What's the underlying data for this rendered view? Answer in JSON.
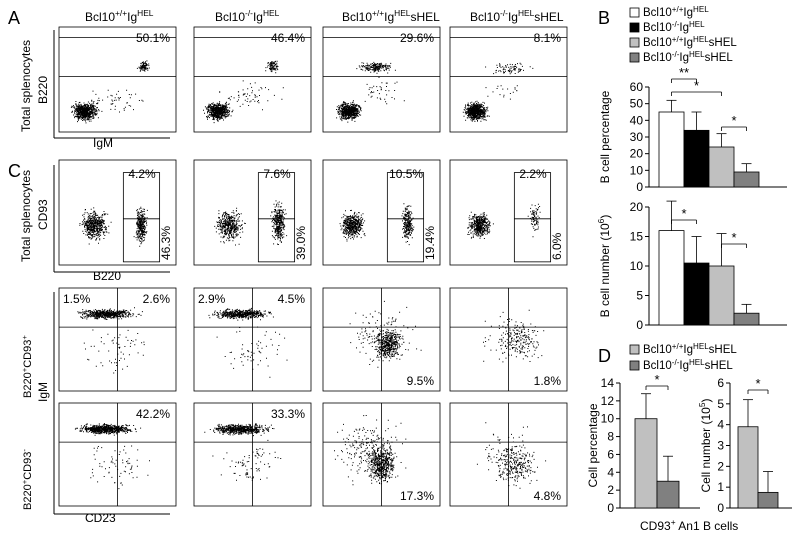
{
  "panel_letters": [
    "A",
    "B",
    "C",
    "D"
  ],
  "genotypes": [
    "Bcl10",
    "Bcl10",
    "Bcl10",
    "Bcl10"
  ],
  "genotype_sup": [
    "+/+",
    "-/-",
    "+/+",
    "-/-"
  ],
  "genotype_mid": [
    "Ig",
    "Ig",
    "Ig",
    "Ig"
  ],
  "genotype_sup2": [
    "HEL",
    "HEL",
    "HEL",
    "HEL"
  ],
  "genotype_tail": [
    "",
    "",
    "sHEL",
    "sHEL"
  ],
  "panelA": {
    "row_label": "Total splenocytes",
    "y_axis": "B220",
    "x_axis": "IgM",
    "gate_percent": [
      "50.1%",
      "46.4%",
      "29.6%",
      "8.1%"
    ]
  },
  "panelC": {
    "row1_label": "Total splenocytes",
    "row1_y": "CD93",
    "row1_x": "B220",
    "row1_top": [
      "4.2%",
      "7.6%",
      "10.5%",
      "2.2%"
    ],
    "row1_bottom": [
      "46.3%",
      "39.0%",
      "19.4%",
      "6.0%"
    ],
    "row2_label_main": "B220",
    "row2_label_sup1": "+",
    "row2_label_mid": "CD93",
    "row2_label_sup2": "+",
    "row3_label_main": "B220",
    "row3_label_sup1": "+",
    "row3_label_mid": "CD93",
    "row3_label_sup2": "-",
    "shared_y": "IgM",
    "shared_x": "CD23",
    "row2_ul": [
      "1.5%",
      "2.9%",
      "",
      ""
    ],
    "row2_ur": [
      "2.6%",
      "4.5%",
      "",
      ""
    ],
    "row2_lr": [
      "",
      "",
      "9.5%",
      "1.8%"
    ],
    "row3_ur": [
      "42.2%",
      "33.3%",
      "",
      ""
    ],
    "row3_lr": [
      "",
      "",
      "17.3%",
      "4.8%"
    ]
  },
  "legendB": [
    {
      "main": "Bcl10",
      "sup1": "+/+",
      "mid": "Ig",
      "sup2": "HEL",
      "tail": "",
      "color": "#ffffff"
    },
    {
      "main": "Bcl10",
      "sup1": "-/-",
      "mid": "Ig",
      "sup2": "HEL",
      "tail": "",
      "color": "#000000"
    },
    {
      "main": "Bcl10",
      "sup1": "+/+",
      "mid": "Ig",
      "sup2": "HEL",
      "tail": "sHEL",
      "color": "#c0c0c0"
    },
    {
      "main": "Bcl10",
      "sup1": "-/-",
      "mid": "Ig",
      "sup2": "HEL",
      "tail": "sHEL",
      "color": "#808080"
    }
  ],
  "legendD": [
    {
      "main": "Bcl10",
      "sup1": "+/+",
      "mid": "Ig",
      "sup2": "HEL",
      "tail": "sHEL",
      "color": "#c0c0c0"
    },
    {
      "main": "Bcl10",
      "sup1": "-/-",
      "mid": "Ig",
      "sup2": "HEL",
      "tail": "sHEL",
      "color": "#808080"
    }
  ],
  "chart_data": [
    {
      "id": "B-top",
      "type": "bar",
      "ylabel": "B cell percentage",
      "ylim": [
        0,
        60
      ],
      "yticks": [
        0,
        10,
        20,
        30,
        40,
        50,
        60
      ],
      "values": [
        45,
        34,
        24,
        9
      ],
      "errors": [
        7,
        11,
        8,
        5
      ],
      "colors": [
        "#ffffff",
        "#000000",
        "#c0c0c0",
        "#808080"
      ],
      "sig": [
        "**",
        "*",
        "*"
      ]
    },
    {
      "id": "B-bottom",
      "type": "bar",
      "ylabel_main": "B cell number (10",
      "ylabel_sup": "6",
      "ylabel_tail": ")",
      "ylim": [
        0,
        20
      ],
      "yticks": [
        0,
        5,
        10,
        15,
        20
      ],
      "values": [
        16,
        10.5,
        10,
        2
      ],
      "errors": [
        5,
        4.5,
        5.5,
        1.5
      ],
      "colors": [
        "#ffffff",
        "#000000",
        "#c0c0c0",
        "#808080"
      ],
      "sig": [
        "*",
        "*"
      ]
    },
    {
      "id": "D-left",
      "type": "bar",
      "ylabel": "Cell percentage",
      "ylim": [
        0,
        14
      ],
      "yticks": [
        0,
        2,
        4,
        6,
        8,
        10,
        12,
        14
      ],
      "values": [
        10,
        3
      ],
      "errors": [
        2.8,
        2.8
      ],
      "colors": [
        "#c0c0c0",
        "#808080"
      ],
      "sig": [
        "*"
      ]
    },
    {
      "id": "D-right",
      "type": "bar",
      "ylabel_main": "Cell number (10",
      "ylabel_sup": "5",
      "ylabel_tail": ")",
      "ylim": [
        0,
        6
      ],
      "yticks": [
        0,
        1,
        2,
        3,
        4,
        5,
        6
      ],
      "values": [
        3.9,
        0.75
      ],
      "errors": [
        1.3,
        1.0
      ],
      "colors": [
        "#c0c0c0",
        "#808080"
      ],
      "sig": [
        "*"
      ]
    }
  ],
  "panelD_xlabel_main": "CD93",
  "panelD_xlabel_sup": "+",
  "panelD_xlabel_tail": " An1 B cells"
}
